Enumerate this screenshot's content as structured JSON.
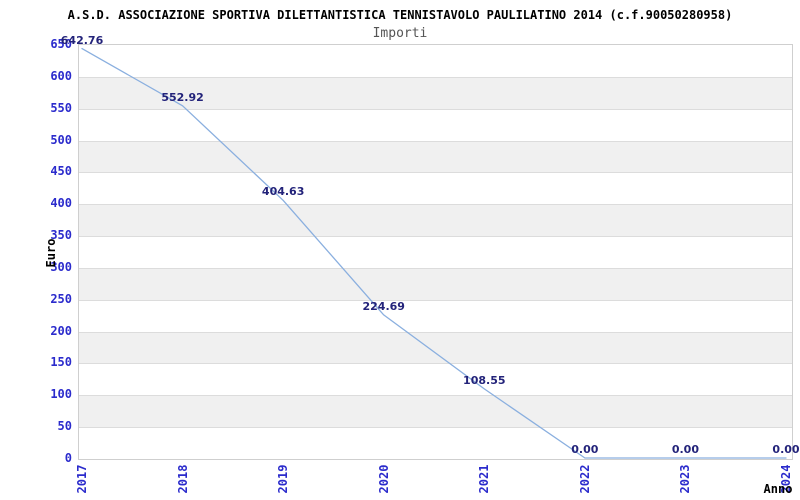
{
  "header": {
    "title": "A.S.D. ASSOCIAZIONE SPORTIVA DILETTANTISTICA TENNISTAVOLO PAULILATINO 2014 (c.f.90050280958)",
    "subtitle": "Importi"
  },
  "chart_data": {
    "type": "line",
    "title": "A.S.D. ASSOCIAZIONE SPORTIVA DILETTANTISTICA TENNISTAVOLO PAULILATINO 2014 (c.f.90050280958)",
    "subtitle": "Importi",
    "xlabel": "Anno",
    "ylabel": "Euro",
    "categories": [
      "2017",
      "2018",
      "2019",
      "2020",
      "2021",
      "2022",
      "2023",
      "2024"
    ],
    "values": [
      642.76,
      552.92,
      404.63,
      224.69,
      108.55,
      0.0,
      0.0,
      0.0
    ],
    "point_labels": [
      "642.76",
      "552.92",
      "404.63",
      "224.69",
      "108.55",
      "0.00",
      "0.00",
      "0.00"
    ],
    "ylim": [
      0,
      650
    ],
    "ytick_step": 50,
    "grid": "horizontal gridlines with alternating gray/white bands",
    "legend": "none",
    "colors": {
      "line": "#8aafdf",
      "tick_label": "#2b2bcc",
      "data_label": "#23237a",
      "band_gray": "#f0f0f0",
      "gridline": "#dcdcdc",
      "plot_border": "#cfcfcf",
      "title": "#000000",
      "subtitle": "#555555",
      "background": "#ffffff"
    }
  }
}
